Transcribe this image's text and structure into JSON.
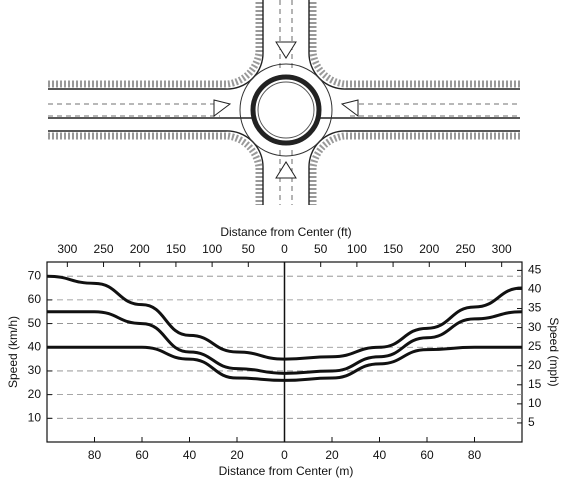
{
  "chart_data": {
    "type": "line",
    "xlabel": "Distance from Center (m)",
    "x2label": "Distance from Center (ft)",
    "ylabel": "Speed (km/h)",
    "y2label": "Speed (mph)",
    "x": [
      -100,
      -80,
      -60,
      -40,
      -20,
      0,
      20,
      40,
      60,
      80,
      100
    ],
    "series": [
      {
        "color": "#111111",
        "values": [
          70,
          67,
          58,
          45,
          38,
          35,
          36,
          40,
          48,
          57,
          65
        ]
      },
      {
        "color": "#111111",
        "values": [
          55,
          55,
          50,
          38,
          31,
          29,
          30,
          36,
          44,
          52,
          55
        ]
      },
      {
        "color": "#111111",
        "values": [
          40,
          40,
          40,
          35,
          27,
          26,
          27,
          33,
          39,
          40,
          40
        ]
      }
    ],
    "xlim": [
      -100,
      100
    ],
    "xticks": [
      {
        "value": -80,
        "label": "80"
      },
      {
        "value": -60,
        "label": "60"
      },
      {
        "value": -40,
        "label": "40"
      },
      {
        "value": -20,
        "label": "20"
      },
      0,
      20,
      40,
      60,
      80
    ],
    "x2lim": [
      -328.1,
      328.1
    ],
    "x2ticks": [
      {
        "value": -300,
        "label": "300"
      },
      {
        "value": -250,
        "label": "250"
      },
      {
        "value": -200,
        "label": "200"
      },
      {
        "value": -150,
        "label": "150"
      },
      {
        "value": -100,
        "label": "100"
      },
      {
        "value": -50,
        "label": "50"
      },
      0,
      50,
      100,
      150,
      200,
      250,
      300
    ],
    "ylim": [
      0,
      76
    ],
    "yticks": [
      10,
      20,
      30,
      40,
      50,
      60,
      70
    ],
    "y2lim": [
      0,
      47.2
    ],
    "y2ticks": [
      5,
      10,
      15,
      20,
      25,
      30,
      35,
      40,
      45
    ],
    "grid": true
  }
}
